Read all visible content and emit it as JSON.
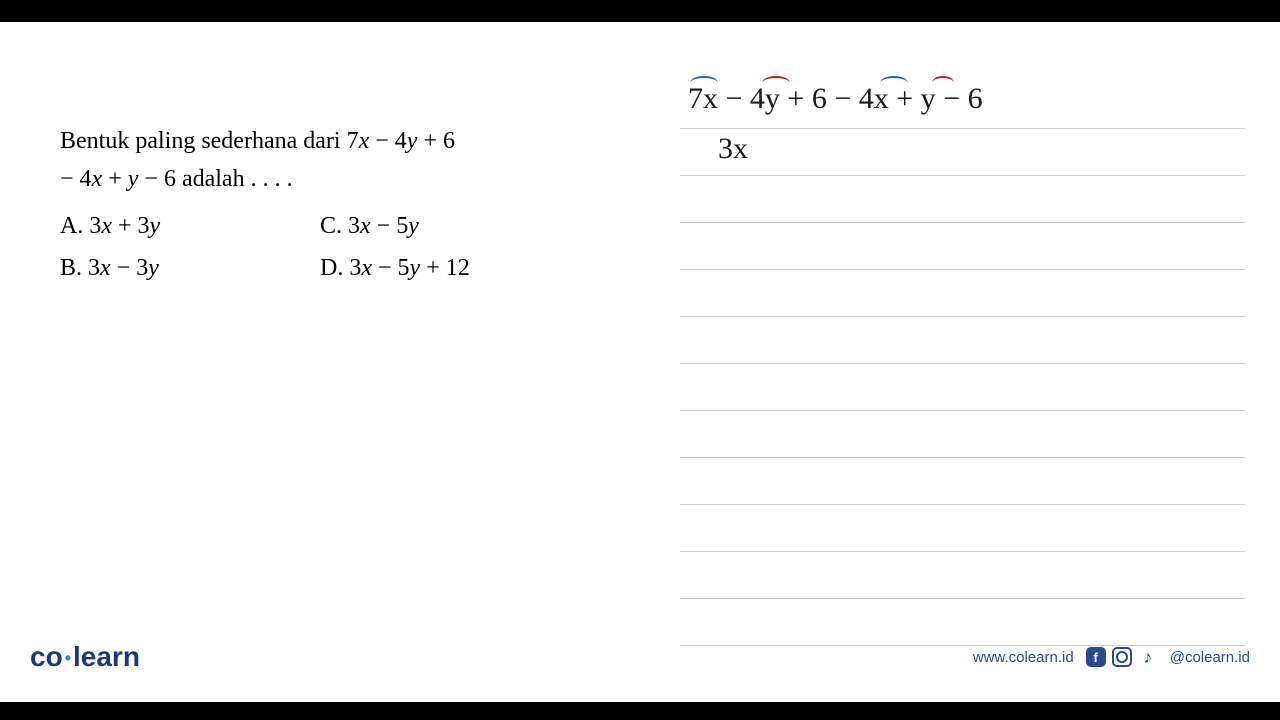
{
  "question": {
    "line1_pre": "Bentuk paling sederhana dari 7",
    "line1_x": "x",
    "line1_mid1": " − 4",
    "line1_y": "y",
    "line1_post": " + 6",
    "line2_pre": "− 4",
    "line2_x": "x",
    "line2_mid": " + ",
    "line2_y": "y",
    "line2_post": " − 6 adalah . . . ."
  },
  "options": {
    "A": {
      "label": "A.",
      "pre": "  3",
      "x": "x",
      "mid": " + 3",
      "y": "y",
      "post": ""
    },
    "B": {
      "label": "B.",
      "pre": "  3",
      "x": "x",
      "mid": " − 3",
      "y": "y",
      "post": ""
    },
    "C": {
      "label": "C.",
      "pre": "  3",
      "x": "x",
      "mid": " − 5",
      "y": "y",
      "post": ""
    },
    "D": {
      "label": "D.",
      "pre": "  3",
      "x": "x",
      "mid": " − 5",
      "y": "y",
      "post": " + 12"
    }
  },
  "handwriting": {
    "line1": "7x − 4y + 6 − 4x + y − 6",
    "line2": "3x",
    "arc_colors": {
      "x": "#1a5fb4",
      "y": "#c01c28"
    }
  },
  "ruled_lines": 12,
  "footer": {
    "logo_co": "co",
    "logo_learn": "learn",
    "url": "www.colearn.id",
    "handle": "@colearn.id"
  },
  "colors": {
    "brand_primary": "#1a3a7a",
    "brand_accent": "#3584e4",
    "rule_line": "#d0d0d0",
    "text": "#000000",
    "background": "#ffffff"
  }
}
